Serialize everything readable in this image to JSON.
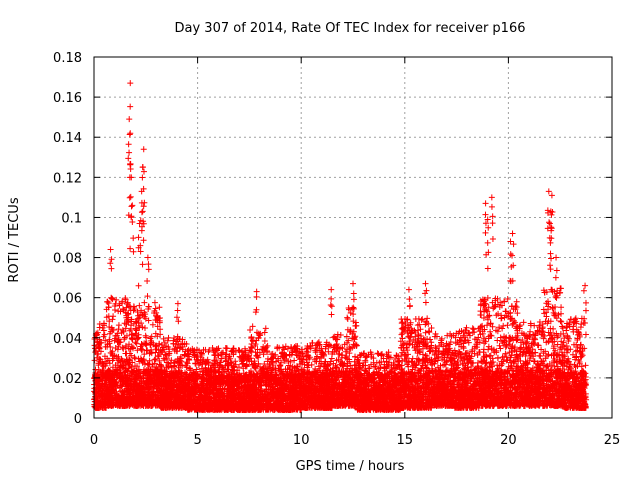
{
  "chart_data": {
    "type": "scatter",
    "title": "Day 307 of 2014, Rate Of TEC Index for receiver p166",
    "xlabel": "GPS time / hours",
    "ylabel": "ROTI / TECUs",
    "xlim": [
      0,
      25
    ],
    "ylim": [
      0,
      0.18
    ],
    "x_ticks": [
      0,
      5,
      10,
      15,
      20,
      25
    ],
    "y_ticks": [
      0,
      0.02,
      0.04,
      0.06,
      0.08,
      0.1,
      0.12,
      0.14,
      0.16,
      0.18
    ],
    "x_tick_labels": [
      "0",
      "5",
      "10",
      "15",
      "20",
      "25"
    ],
    "y_tick_labels": [
      "0",
      "0.02",
      "0.04",
      "0.06",
      "0.08",
      "0.1",
      "0.12",
      "0.14",
      "0.16",
      "0.18"
    ],
    "grid": true,
    "marker": "+",
    "marker_color": "#ff0000",
    "data_range_x": [
      0,
      23.75
    ],
    "peaks": [
      {
        "x": 1.75,
        "y": 0.167
      },
      {
        "x": 1.7,
        "y": 0.149
      },
      {
        "x": 1.75,
        "y": 0.142
      },
      {
        "x": 2.4,
        "y": 0.134
      },
      {
        "x": 2.35,
        "y": 0.125
      },
      {
        "x": 1.8,
        "y": 0.12
      },
      {
        "x": 2.3,
        "y": 0.113
      },
      {
        "x": 1.85,
        "y": 0.106
      },
      {
        "x": 2.35,
        "y": 0.103
      },
      {
        "x": 2.2,
        "y": 0.097
      },
      {
        "x": 0.8,
        "y": 0.084
      },
      {
        "x": 2.6,
        "y": 0.08
      },
      {
        "x": 4.05,
        "y": 0.057
      },
      {
        "x": 7.85,
        "y": 0.063
      },
      {
        "x": 11.45,
        "y": 0.064
      },
      {
        "x": 12.5,
        "y": 0.067
      },
      {
        "x": 15.2,
        "y": 0.064
      },
      {
        "x": 16.0,
        "y": 0.067
      },
      {
        "x": 18.9,
        "y": 0.107
      },
      {
        "x": 19.2,
        "y": 0.11
      },
      {
        "x": 19.0,
        "y": 0.099
      },
      {
        "x": 20.2,
        "y": 0.092
      },
      {
        "x": 20.1,
        "y": 0.088
      },
      {
        "x": 21.95,
        "y": 0.113
      },
      {
        "x": 22.1,
        "y": 0.111
      },
      {
        "x": 22.05,
        "y": 0.103
      },
      {
        "x": 22.0,
        "y": 0.097
      },
      {
        "x": 22.3,
        "y": 0.08
      },
      {
        "x": 23.7,
        "y": 0.066
      }
    ],
    "baseline_envelope": [
      {
        "x_start": 0.0,
        "x_end": 0.6,
        "y_min": 0.005,
        "y_max": 0.048
      },
      {
        "x_start": 0.6,
        "x_end": 1.6,
        "y_min": 0.006,
        "y_max": 0.06
      },
      {
        "x_start": 1.6,
        "x_end": 3.2,
        "y_min": 0.006,
        "y_max": 0.058
      },
      {
        "x_start": 3.2,
        "x_end": 4.5,
        "y_min": 0.005,
        "y_max": 0.04
      },
      {
        "x_start": 4.5,
        "x_end": 7.5,
        "y_min": 0.004,
        "y_max": 0.035
      },
      {
        "x_start": 7.5,
        "x_end": 8.3,
        "y_min": 0.004,
        "y_max": 0.046
      },
      {
        "x_start": 8.3,
        "x_end": 10.0,
        "y_min": 0.004,
        "y_max": 0.036
      },
      {
        "x_start": 10.0,
        "x_end": 11.5,
        "y_min": 0.005,
        "y_max": 0.038
      },
      {
        "x_start": 11.5,
        "x_end": 12.2,
        "y_min": 0.006,
        "y_max": 0.042
      },
      {
        "x_start": 12.2,
        "x_end": 12.7,
        "y_min": 0.006,
        "y_max": 0.055
      },
      {
        "x_start": 12.7,
        "x_end": 14.8,
        "y_min": 0.004,
        "y_max": 0.033
      },
      {
        "x_start": 14.8,
        "x_end": 16.3,
        "y_min": 0.005,
        "y_max": 0.05
      },
      {
        "x_start": 16.3,
        "x_end": 17.4,
        "y_min": 0.006,
        "y_max": 0.042
      },
      {
        "x_start": 17.4,
        "x_end": 18.6,
        "y_min": 0.005,
        "y_max": 0.045
      },
      {
        "x_start": 18.6,
        "x_end": 20.5,
        "y_min": 0.006,
        "y_max": 0.06
      },
      {
        "x_start": 20.5,
        "x_end": 21.7,
        "y_min": 0.006,
        "y_max": 0.048
      },
      {
        "x_start": 21.7,
        "x_end": 22.6,
        "y_min": 0.006,
        "y_max": 0.065
      },
      {
        "x_start": 22.6,
        "x_end": 23.75,
        "y_min": 0.005,
        "y_max": 0.05
      }
    ]
  }
}
